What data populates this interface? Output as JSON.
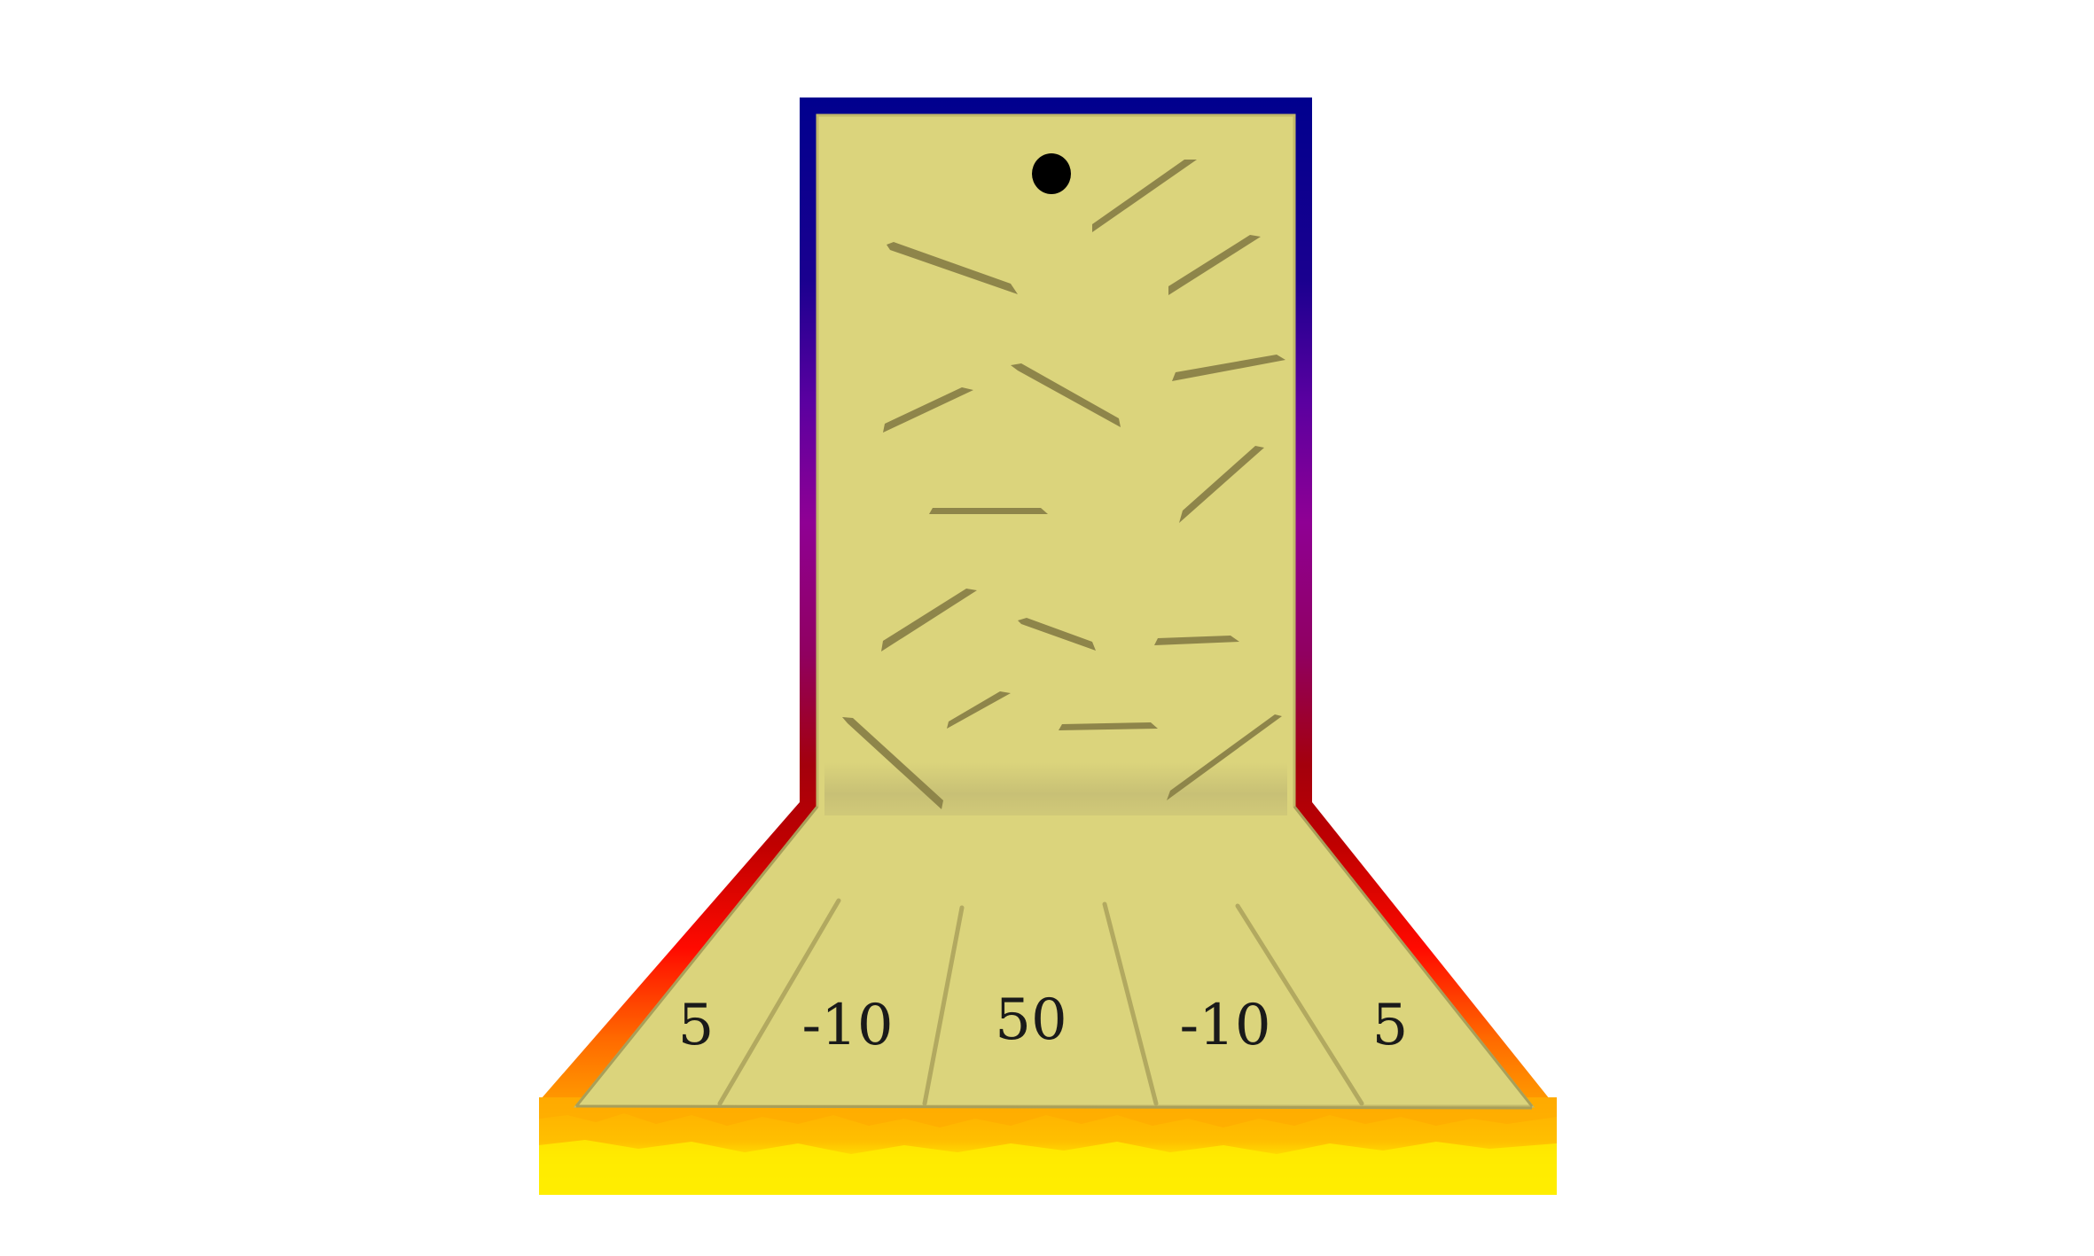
{
  "game": {
    "colors": {
      "board_fill": "#dbd47c",
      "peg": "#8e854a",
      "divider": "#b2a960",
      "ball": "#000000",
      "frame_top": "#00008e",
      "frame_mid": "#8f0094",
      "frame_low": "#a4000c",
      "frame_red": "#ff0a00",
      "frame_orange": "#ff6a00",
      "base_orange": "#ffb000",
      "base_yellow": "#ffee00"
    },
    "slots": [
      {
        "label": "5"
      },
      {
        "label": "-10"
      },
      {
        "label": "50"
      },
      {
        "label": "-10"
      },
      {
        "label": "5"
      }
    ]
  }
}
